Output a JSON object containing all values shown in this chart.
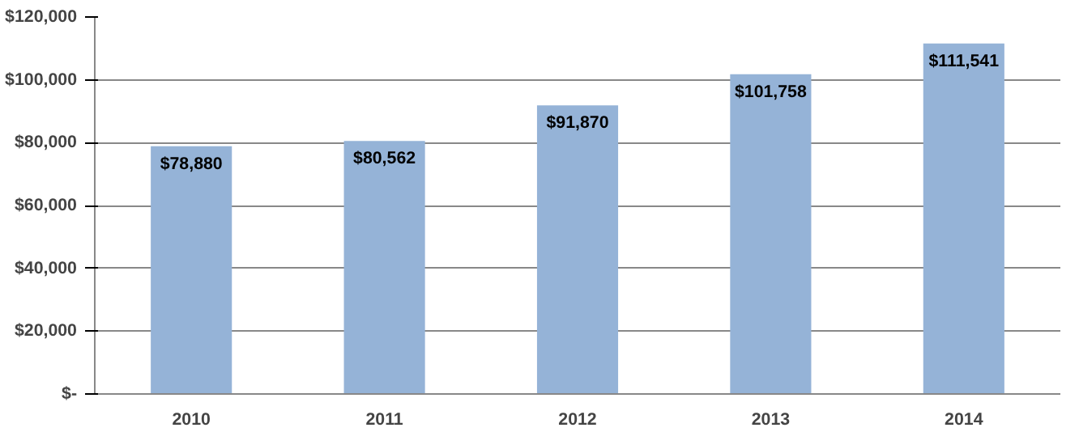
{
  "chart_data": {
    "type": "bar",
    "categories": [
      "2010",
      "2011",
      "2012",
      "2013",
      "2014"
    ],
    "values": [
      78880,
      80562,
      91870,
      101758,
      111541
    ],
    "value_labels": [
      "$78,880",
      "$80,562",
      "$91,870",
      "$101,758",
      "$111,541"
    ],
    "color": "#95b3d7",
    "ylim": [
      0,
      120000
    ],
    "yticks": [
      {
        "value": 0,
        "label": "$-"
      },
      {
        "value": 20000,
        "label": "$20,000"
      },
      {
        "value": 40000,
        "label": "$40,000"
      },
      {
        "value": 60000,
        "label": "$60,000"
      },
      {
        "value": 80000,
        "label": "$80,000"
      },
      {
        "value": 100000,
        "label": "$100,000"
      },
      {
        "value": 120000,
        "label": "$120,000"
      }
    ],
    "grid": "y"
  }
}
